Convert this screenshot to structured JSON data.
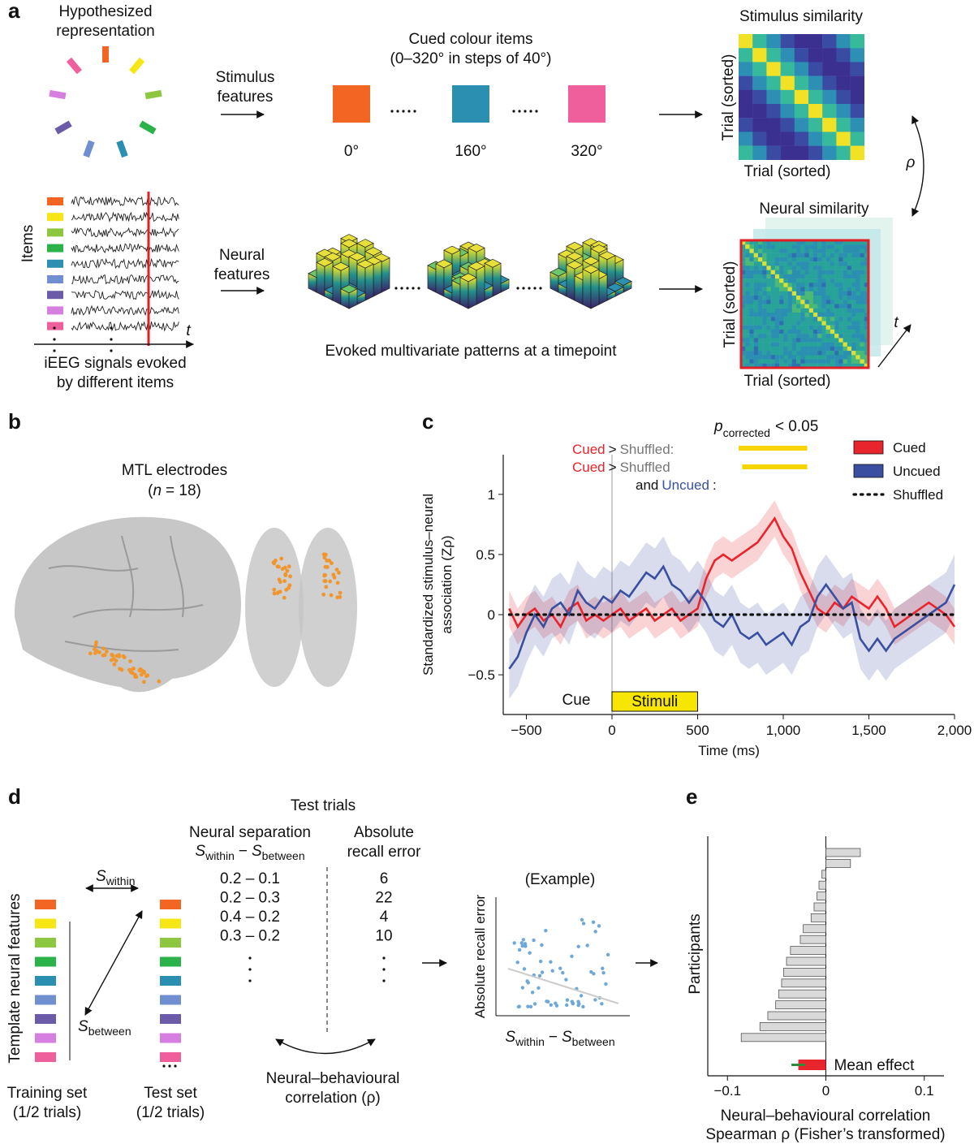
{
  "panel_labels": [
    "a",
    "b",
    "c",
    "d",
    "e"
  ],
  "item_colors": [
    "#f26522",
    "#f5e614",
    "#8dc63f",
    "#2bb34a",
    "#2a8fb0",
    "#6f8fd0",
    "#6b5ba8",
    "#d77fe0",
    "#ef5f9c"
  ],
  "panel_a": {
    "hypothesized": [
      "Hypothesized",
      "representation"
    ],
    "stimulus_features": [
      "Stimulus",
      "features"
    ],
    "cued_items": [
      "Cued colour items",
      "(0–320° in steps of 40°)"
    ],
    "item_angles": [
      "0°",
      "160°",
      "320°"
    ],
    "stimulus_similarity": "Stimulus similarity",
    "trial_sorted": "Trial (sorted)",
    "rho": "ρ",
    "neural_similarity": "Neural similarity",
    "items": "Items",
    "t": "t",
    "neural_features": [
      "Neural",
      "features"
    ],
    "ieeg": [
      "iEEG signals evoked",
      "by different items"
    ],
    "patterns": "Evoked multivariate patterns at a timepoint"
  },
  "panel_b": {
    "title": "MTL electrodes",
    "count": [
      "(",
      "n",
      "= 18)"
    ]
  },
  "panel_d": {
    "test_trials": "Test trials",
    "neural_separation": "Neural separation",
    "formula": [
      "S",
      "within",
      "−",
      "S",
      "between"
    ],
    "recall_error_header": [
      "Absolute",
      "recall error"
    ],
    "rows": [
      [
        "0.2 – 0.1",
        "6"
      ],
      [
        "0.2 – 0.3",
        "22"
      ],
      [
        "0.4 – 0.2",
        "4"
      ],
      [
        "0.3 – 0.2",
        "10"
      ]
    ],
    "template": "Template neural features",
    "training": [
      "Training set",
      "(1/2 trials)"
    ],
    "test": [
      "Test set",
      "(1/2 trials)"
    ],
    "correlation": [
      "Neural–behavioural",
      "correlation (ρ)"
    ],
    "example": "(Example)",
    "example_ylabel": "Absolute recall error"
  },
  "chart_data": [
    {
      "type": "line",
      "ylabel": [
        "Standardized stimulus–neural",
        "association (Zρ)"
      ],
      "xlabel": "Time (ms)",
      "xlim": [
        -635,
        2000
      ],
      "ylim": [
        -0.83,
        1.33
      ],
      "xticks": [
        {
          "value": -500,
          "label": "−500"
        },
        0,
        500,
        {
          "value": 1000,
          "label": "1,000"
        },
        {
          "value": 1500,
          "label": "1,500"
        },
        {
          "value": 2000,
          "label": "2,000"
        }
      ],
      "yticks": [
        {
          "value": -0.5,
          "label": "−0.5"
        },
        0,
        0.5,
        1
      ],
      "legend": "upper right",
      "x": [
        -600,
        -550,
        -500,
        -450,
        -400,
        -350,
        -300,
        -250,
        -200,
        -150,
        -100,
        -50,
        0,
        50,
        100,
        150,
        200,
        250,
        300,
        350,
        400,
        450,
        500,
        550,
        600,
        650,
        700,
        750,
        800,
        850,
        900,
        950,
        1000,
        1050,
        1100,
        1150,
        1200,
        1250,
        1300,
        1350,
        1400,
        1450,
        1500,
        1550,
        1600,
        1650,
        1700,
        1750,
        1800,
        1850,
        1900,
        1950,
        2000
      ],
      "series": [
        {
          "name": "Cued",
          "color": "#e8242c",
          "error": 0.15,
          "values": [
            0.05,
            -0.1,
            0.0,
            0.05,
            -0.05,
            0.0,
            -0.1,
            0.05,
            0.1,
            -0.05,
            0.0,
            -0.05,
            0.0,
            0.05,
            -0.05,
            0.0,
            0.05,
            -0.05,
            0.0,
            0.05,
            -0.05,
            0.0,
            0.05,
            0.3,
            0.45,
            0.5,
            0.45,
            0.5,
            0.55,
            0.6,
            0.7,
            0.8,
            0.65,
            0.55,
            0.35,
            0.2,
            0.05,
            0.0,
            0.1,
            0.05,
            0.15,
            0.1,
            0.05,
            0.15,
            0.05,
            -0.1,
            -0.05,
            0.0,
            0.05,
            0.1,
            0.05,
            0.0,
            -0.1
          ]
        },
        {
          "name": "Uncued",
          "color": "#3a4fa0",
          "error": 0.25,
          "values": [
            -0.45,
            -0.35,
            -0.15,
            0.0,
            -0.1,
            0.05,
            0.1,
            0.0,
            0.2,
            0.1,
            0.05,
            0.15,
            0.1,
            0.2,
            0.15,
            0.25,
            0.35,
            0.3,
            0.4,
            0.25,
            0.2,
            0.1,
            0.2,
            0.1,
            -0.05,
            -0.1,
            0.0,
            -0.15,
            -0.2,
            -0.15,
            -0.25,
            -0.2,
            -0.15,
            -0.25,
            -0.1,
            -0.05,
            0.15,
            0.25,
            0.15,
            0.05,
            0.1,
            -0.2,
            -0.3,
            -0.2,
            -0.3,
            -0.2,
            -0.15,
            -0.1,
            -0.05,
            0.0,
            0.05,
            0.1,
            0.25
          ]
        },
        {
          "name": "Shuffled",
          "color": "#111111",
          "linestyle": "dotted",
          "values": [
            0,
            0,
            0,
            0,
            0,
            0,
            0,
            0,
            0,
            0,
            0,
            0,
            0,
            0,
            0,
            0,
            0,
            0,
            0,
            0,
            0,
            0,
            0,
            0,
            0,
            0,
            0,
            0,
            0,
            0,
            0,
            0,
            0,
            0,
            0,
            0,
            0,
            0,
            0,
            0,
            0,
            0,
            0,
            0,
            0,
            0,
            0,
            0,
            0,
            0,
            0,
            0,
            0
          ]
        }
      ],
      "stimulus": {
        "label": "Stimuli",
        "window": [
          0,
          500
        ],
        "color": "#f7e600"
      },
      "cue_label": "Cue",
      "significance_label": [
        "p",
        "corrected",
        "< 0.05"
      ],
      "significance_color": "#f5d400",
      "significance": [
        {
          "start": 740,
          "end": 1140
        },
        {
          "start": 760,
          "end": 1140
        }
      ],
      "annotation_rows": [
        [
          {
            "text": "Cued",
            "color": "#e8242c"
          },
          {
            "text": ">",
            "color": "#111111"
          },
          {
            "text": "Shuffled:",
            "color": "#777777"
          }
        ],
        [
          {
            "text": "Cued",
            "color": "#e8242c"
          },
          {
            "text": ">",
            "color": "#111111"
          },
          {
            "text": "Shuffled",
            "color": "#777777"
          }
        ],
        [
          {
            "text": "and",
            "color": "#111111"
          },
          {
            "text": "Uncued",
            "color": "#3a4fa0"
          },
          {
            "text": ":",
            "color": "#111111"
          }
        ]
      ]
    },
    {
      "type": "bar",
      "orientation": "horizontal",
      "ylabel": "Participants",
      "xlabel": [
        "Neural–behavioural correlation",
        "Spearman ρ (Fisher’s transformed)"
      ],
      "xlim": [
        -0.12,
        0.12
      ],
      "xticks": [
        {
          "value": -0.1,
          "label": "−0.1"
        },
        0,
        0.1
      ],
      "color": "#d9d9d9",
      "categories": [
        null,
        null,
        null,
        null,
        null,
        null,
        null,
        null,
        null,
        null,
        null,
        null,
        null,
        null,
        null,
        null,
        null,
        null
      ],
      "values": [
        0.035,
        0.025,
        -0.004,
        -0.007,
        -0.009,
        -0.012,
        -0.015,
        -0.023,
        -0.026,
        -0.036,
        -0.04,
        -0.043,
        -0.045,
        -0.048,
        -0.051,
        -0.059,
        -0.067,
        -0.086
      ],
      "mean": {
        "label": "Mean effect",
        "value": -0.028,
        "error": 0.007,
        "color": "#e8242c",
        "error_color": "#2e8b3a"
      }
    }
  ]
}
